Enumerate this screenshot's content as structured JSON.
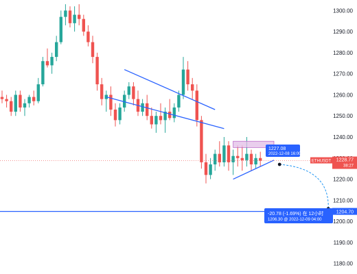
{
  "symbol": "ETHUSDT",
  "colors": {
    "up": "#26a69a",
    "down": "#ef5350",
    "trend": "#2962ff",
    "hline": "#2962ff",
    "zone_fill": "#e1bee7",
    "zone_stroke": "#ab47bc",
    "price_tag": "#ef5350",
    "measure": "#2962ff",
    "projection": "#2196f3",
    "current_line": "#ef5350"
  },
  "price_tag": {
    "price": "1228.77",
    "countdown": "38:27"
  },
  "level_tag": {
    "price": "1204.70"
  },
  "low_tooltip": {
    "price": "1227.08",
    "datetime": "2022-12-08 16:00"
  },
  "measure_box": {
    "change": "-20.78 (-1.69%) 在 12小时",
    "detail": "1206.30 @ 2022-12-09  04:00"
  },
  "chart_data": {
    "type": "candlestick",
    "title": "",
    "xlabel": "",
    "ylabel": "",
    "ylim": [
      1175,
      1305
    ],
    "y_ticks": [
      1180,
      1190,
      1200,
      1210,
      1220,
      1230,
      1240,
      1250,
      1260,
      1270,
      1280,
      1290,
      1300
    ],
    "y_tick_labels": [
      "1180.00",
      "1190.00",
      "1200.00",
      "1210.00",
      "1220.00",
      "1230.00",
      "1240.00",
      "1250.00",
      "1260.00",
      "1270.00",
      "1280.00",
      "1290.00",
      "1300.00"
    ],
    "grid": false,
    "legend": "none",
    "current_price": 1228.77,
    "horizontal_level": 1204.7,
    "candles": [
      [
        1259,
        1262,
        1256,
        1258
      ],
      [
        1258,
        1260,
        1254,
        1257
      ],
      [
        1257,
        1259,
        1250,
        1252
      ],
      [
        1252,
        1262,
        1250,
        1260
      ],
      [
        1260,
        1262,
        1252,
        1254
      ],
      [
        1254,
        1258,
        1250,
        1256
      ],
      [
        1256,
        1260,
        1254,
        1259
      ],
      [
        1259,
        1262,
        1255,
        1257
      ],
      [
        1257,
        1268,
        1256,
        1265
      ],
      [
        1265,
        1278,
        1264,
        1276
      ],
      [
        1276,
        1282,
        1273,
        1274
      ],
      [
        1274,
        1280,
        1270,
        1278
      ],
      [
        1278,
        1288,
        1276,
        1285
      ],
      [
        1285,
        1300,
        1284,
        1297
      ],
      [
        1297,
        1303,
        1293,
        1300
      ],
      [
        1300,
        1302,
        1292,
        1294
      ],
      [
        1294,
        1302,
        1290,
        1298
      ],
      [
        1298,
        1303,
        1293,
        1296
      ],
      [
        1296,
        1298,
        1288,
        1290
      ],
      [
        1290,
        1293,
        1283,
        1285
      ],
      [
        1285,
        1288,
        1275,
        1278
      ],
      [
        1278,
        1280,
        1262,
        1265
      ],
      [
        1265,
        1268,
        1255,
        1258
      ],
      [
        1258,
        1262,
        1252,
        1260
      ],
      [
        1260,
        1264,
        1250,
        1253
      ],
      [
        1253,
        1256,
        1245,
        1248
      ],
      [
        1248,
        1256,
        1246,
        1254
      ],
      [
        1254,
        1262,
        1252,
        1260
      ],
      [
        1260,
        1266,
        1258,
        1264
      ],
      [
        1264,
        1266,
        1255,
        1258
      ],
      [
        1258,
        1262,
        1250,
        1252
      ],
      [
        1252,
        1258,
        1250,
        1256
      ],
      [
        1256,
        1260,
        1248,
        1250
      ],
      [
        1250,
        1254,
        1244,
        1246
      ],
      [
        1246,
        1252,
        1242,
        1250
      ],
      [
        1250,
        1256,
        1246,
        1248
      ],
      [
        1248,
        1254,
        1242,
        1252
      ],
      [
        1252,
        1258,
        1248,
        1249
      ],
      [
        1249,
        1256,
        1247,
        1254
      ],
      [
        1254,
        1262,
        1252,
        1260
      ],
      [
        1260,
        1278,
        1258,
        1272
      ],
      [
        1272,
        1276,
        1262,
        1265
      ],
      [
        1265,
        1268,
        1258,
        1262
      ],
      [
        1262,
        1265,
        1245,
        1248
      ],
      [
        1248,
        1250,
        1225,
        1228
      ],
      [
        1228,
        1232,
        1218,
        1222
      ],
      [
        1222,
        1230,
        1220,
        1227
      ],
      [
        1227,
        1234,
        1224,
        1232
      ],
      [
        1232,
        1238,
        1226,
        1228
      ],
      [
        1228,
        1240,
        1226,
        1236
      ],
      [
        1236,
        1238,
        1224,
        1228
      ],
      [
        1228,
        1234,
        1222,
        1231
      ],
      [
        1231,
        1236,
        1226,
        1230
      ],
      [
        1230,
        1236,
        1224,
        1229
      ],
      [
        1229,
        1240,
        1226,
        1232
      ],
      [
        1232,
        1234,
        1224,
        1227
      ],
      [
        1227,
        1232,
        1225,
        1230
      ],
      [
        1230,
        1233,
        1226,
        1228.77
      ]
    ],
    "annotations": {
      "channel_upper": [
        [
          27,
          1272
        ],
        [
          47,
          1253
        ]
      ],
      "channel_lower": [
        [
          23,
          1259
        ],
        [
          49,
          1244
        ]
      ],
      "triangle_support": [
        [
          51,
          1220
        ],
        [
          60,
          1229
        ]
      ],
      "resistance_zone": {
        "x": [
          51,
          60
        ],
        "y": [
          1235,
          1238
        ]
      },
      "measure_line": [
        [
          62,
          1227
        ],
        [
          72,
          1204.7
        ]
      ]
    }
  }
}
